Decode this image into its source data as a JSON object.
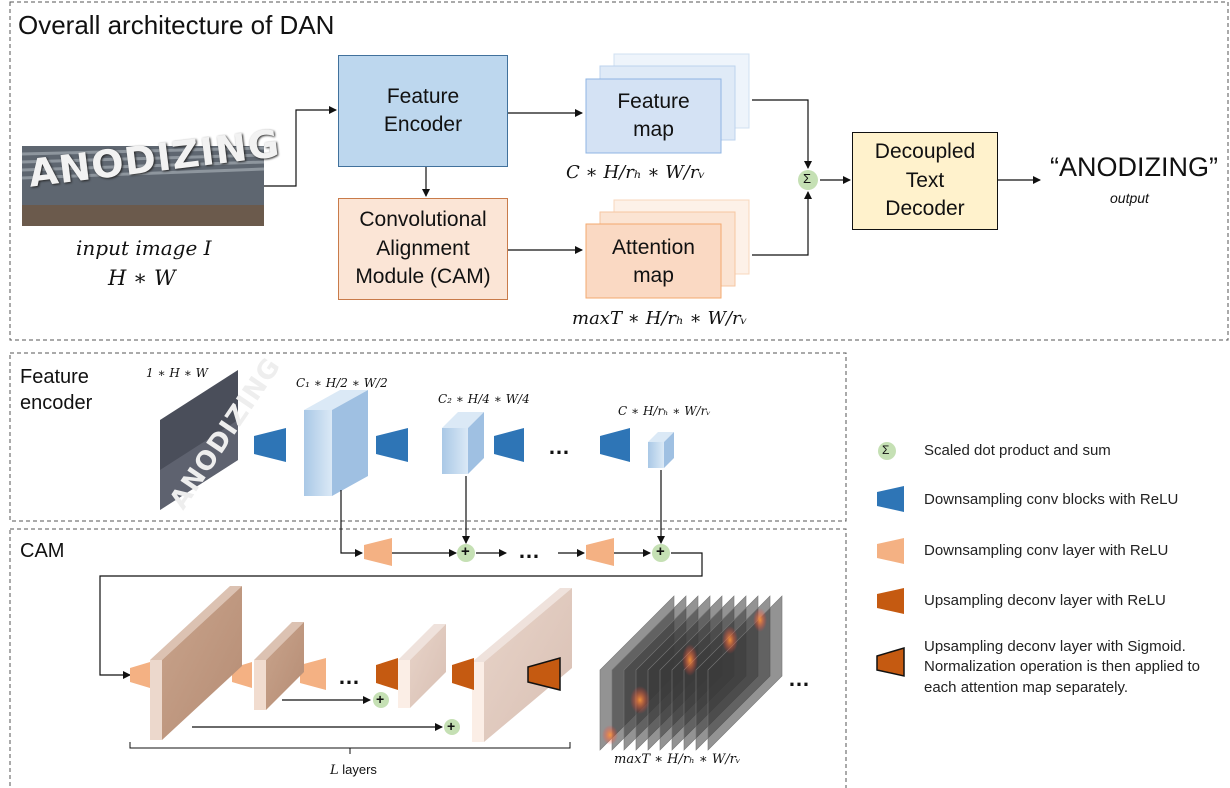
{
  "title": "Overall architecture of DAN",
  "top": {
    "input_image_word": "ANODIZING",
    "input_label": "input image",
    "input_label_var": "I",
    "input_dims": "H ∗ W",
    "feature_encoder": [
      "Feature",
      "Encoder"
    ],
    "cam": [
      "Convolutional",
      "Alignment",
      "Module (CAM)"
    ],
    "feature_map": [
      "Feature",
      "map"
    ],
    "feature_map_dims": "C ∗ H/rₕ ∗ W/rᵥ",
    "attention_map": [
      "Attention",
      "map"
    ],
    "attention_map_dims": "maxT ∗ H/rₕ ∗ W/rᵥ",
    "sum_symbol": "Σ",
    "decoder": [
      "Decoupled",
      "Text",
      "Decoder"
    ],
    "output_text": "“ANODIZING”",
    "output_label": "output"
  },
  "encoder": {
    "label": [
      "Feature",
      "encoder"
    ],
    "dims_in": "1 ∗ H ∗ W",
    "dims_1": "C₁ ∗ H/2 ∗ W/2",
    "dims_2": "C₂ ∗ H/4 ∗ W/4",
    "dims_out": "C ∗ H/rₕ ∗ W/rᵥ",
    "ellipsis": "…"
  },
  "cam": {
    "label": "CAM",
    "ellipsis": "…",
    "layers_var": "L",
    "layers_text": " layers",
    "output_dims": "maxT ∗ H/rₕ ∗ W/rᵥ"
  },
  "legend": {
    "items": [
      {
        "icon": "sum-circle-icon",
        "text": "Scaled dot product and sum"
      },
      {
        "icon": "blue-trapezoid-icon",
        "text": "Downsampling conv blocks with ReLU"
      },
      {
        "icon": "peach-trapezoid-icon",
        "text": "Downsampling conv layer with ReLU"
      },
      {
        "icon": "orange-trapezoid-icon",
        "text": "Upsampling deconv layer with ReLU"
      },
      {
        "icon": "outlined-trapezoid-icon",
        "text": "Upsampling deconv layer with Sigmoid. Normalization operation is then applied to each attention map separately."
      }
    ]
  },
  "colors": {
    "encoder_fill": "#bdd7ee",
    "cam_fill": "#fbe5d6",
    "decoder_fill": "#fff2cc",
    "blue_block": "#2e75b6",
    "peach_block": "#f4b183",
    "orange_block": "#c55a11",
    "sum_circle": "#c5e0b4"
  }
}
